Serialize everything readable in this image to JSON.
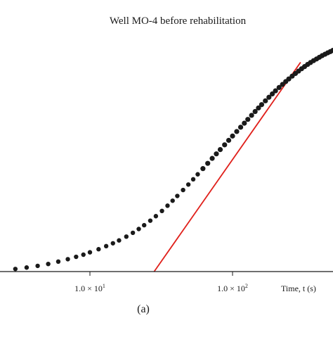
{
  "chart_data": {
    "type": "scatter",
    "title": "Well MO-4 before rehabilitation",
    "xlabel": "Time, t (s)",
    "ylabel": "",
    "x_scale": "log",
    "xlim": [
      2.5,
      600
    ],
    "ylim": [
      0,
      1
    ],
    "grid": false,
    "legend": "none",
    "tick_labels": [
      {
        "value": 10,
        "label": "1.0 × 10",
        "exp": "1"
      },
      {
        "value": 100,
        "label": "1.0 × 10",
        "exp": "2"
      }
    ],
    "panel_label": "(a)",
    "colors": {
      "points": "#1a1a1a",
      "fit_line": "#e0201b",
      "axis": "#1a1a1a"
    },
    "series": [
      {
        "kind": "points",
        "x": [
          3.0,
          3.6,
          4.3,
          5.1,
          6.0,
          7.0,
          8.0,
          9.0,
          10.0,
          11.5,
          13.0,
          14.5,
          16.0,
          18.0,
          20.0,
          22.0,
          24.0,
          26.5,
          29.0,
          32.0,
          35.0,
          38.0,
          41.0,
          45.0,
          49.0,
          53.0,
          57.0,
          62.0,
          67.0,
          72.0,
          77.0,
          82.0,
          88.0,
          94.0,
          100.0,
          107.0,
          114.0,
          121.0,
          128.0,
          136.0,
          144.0,
          152.0,
          160.0,
          170.0,
          180.0,
          190.0,
          200.0,
          212.0,
          224.0,
          236.0,
          248.0,
          262.0,
          276.0,
          290.0,
          305.0,
          320.0,
          336.0,
          352.0,
          370.0,
          388.0,
          406.0,
          425.0,
          445.0,
          465.0,
          485.0,
          505.0,
          525.0,
          545.0,
          565.0,
          585.0
        ],
        "y": [
          0.011,
          0.017,
          0.024,
          0.032,
          0.042,
          0.052,
          0.062,
          0.071,
          0.081,
          0.094,
          0.107,
          0.119,
          0.131,
          0.147,
          0.163,
          0.179,
          0.195,
          0.214,
          0.233,
          0.255,
          0.277,
          0.298,
          0.318,
          0.343,
          0.366,
          0.388,
          0.409,
          0.433,
          0.455,
          0.476,
          0.495,
          0.513,
          0.533,
          0.552,
          0.57,
          0.589,
          0.607,
          0.624,
          0.64,
          0.657,
          0.673,
          0.688,
          0.702,
          0.718,
          0.733,
          0.747,
          0.76,
          0.774,
          0.787,
          0.799,
          0.81,
          0.822,
          0.833,
          0.843,
          0.853,
          0.862,
          0.871,
          0.879,
          0.887,
          0.894,
          0.901,
          0.908,
          0.914,
          0.92,
          0.925,
          0.93,
          0.935,
          0.939,
          0.943,
          0.947
        ]
      },
      {
        "kind": "line",
        "x": [
          25.0,
          300.0
        ],
        "y": [
          -0.045,
          0.88
        ]
      }
    ]
  }
}
